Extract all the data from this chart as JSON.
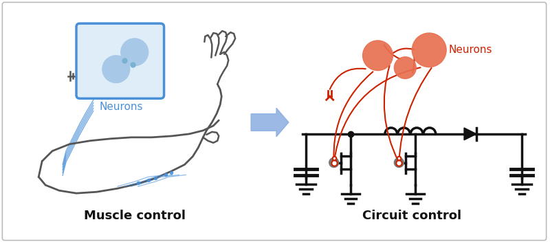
{
  "bg_color": "#ffffff",
  "border_color": "#cccccc",
  "left_label": "Muscle control",
  "right_label": "Circuit control",
  "neurons_label_blue": "Neurons",
  "neurons_label_red": "Neurons",
  "blue_color": "#4a90d9",
  "blue_fill": "#a8c8e8",
  "blue_box_fill": "#deedf8",
  "red_color": "#cc2200",
  "neuron_fill_red": "#e87050",
  "gray_color": "#777777",
  "dark_gray": "#555555",
  "circuit_black": "#111111",
  "arrow_blue": "#8aade0"
}
